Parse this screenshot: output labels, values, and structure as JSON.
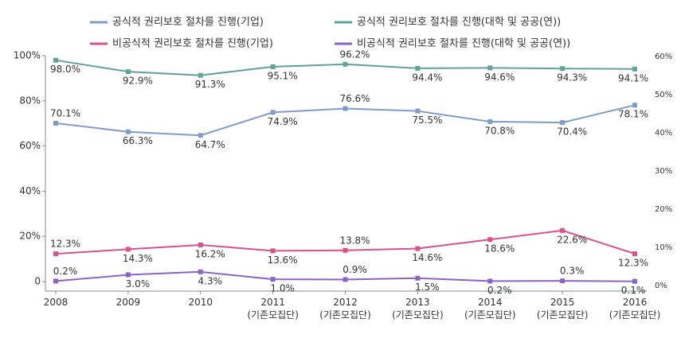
{
  "chart_data": {
    "type": "line",
    "categories": [
      "2008",
      "2009",
      "2010",
      "2011\n(기존모집단)",
      "2012\n(기존모집단)",
      "2013\n(기존모집단)",
      "2014\n(기존모집단)",
      "2015\n(기존모집단)",
      "2016\n(기존모집단)"
    ],
    "series": [
      {
        "name": "공식적 권리보호 절차를 진행(기업)",
        "color": "#7f9cc8",
        "values": [
          70.1,
          66.3,
          64.7,
          74.9,
          76.6,
          75.5,
          70.8,
          70.4,
          78.1
        ],
        "value_labels": [
          "70.1%",
          "66.3%",
          "64.7%",
          "74.9%",
          "76.6%",
          "75.5%",
          "70.8%",
          "70.4%",
          "78.1%"
        ]
      },
      {
        "name": "공식적 권리보호 절차를 진행(대학 및 공공(연))",
        "color": "#5ea39a",
        "values": [
          98.0,
          92.9,
          91.3,
          95.1,
          96.2,
          94.4,
          94.6,
          94.3,
          94.1
        ],
        "value_labels": [
          "98.0%",
          "92.9%",
          "91.3%",
          "95.1%",
          "96.2%",
          "94.4%",
          "94.6%",
          "94.3%",
          "94.1%"
        ]
      },
      {
        "name": "비공식적 권리보호 절차를 진행(기업)",
        "color": "#d9508a",
        "values": [
          12.3,
          14.3,
          16.2,
          13.6,
          13.8,
          14.6,
          18.6,
          22.6,
          12.3
        ],
        "value_labels": [
          "12.3%",
          "14.3%",
          "16.2%",
          "13.6%",
          "13.8%",
          "14.6%",
          "18.6%",
          "22.6%",
          "12.3%"
        ]
      },
      {
        "name": "비공식적 권리보호 절차를 진행(대학 및 공공(연))",
        "color": "#8a63c4",
        "values": [
          0.2,
          3.0,
          4.3,
          1.0,
          0.9,
          1.5,
          0.2,
          0.3,
          0.1
        ],
        "value_labels": [
          "0.2%",
          "3.0%",
          "4.3%",
          "1.0%",
          "0.9%",
          "1.5%",
          "0.2%",
          "0.3%",
          "0.1%"
        ]
      }
    ],
    "ylim": [
      0,
      100
    ],
    "yticks": [
      0,
      {
        "value": 20,
        "label": "20%"
      },
      {
        "value": 40,
        "label": "40%"
      },
      {
        "value": 60,
        "label": "60%"
      },
      {
        "value": 80,
        "label": "80%"
      },
      {
        "value": 100,
        "label": "100%"
      }
    ],
    "y2lim": [
      0,
      60
    ],
    "y2ticks": [
      {
        "value": 0,
        "label": "0%"
      },
      {
        "value": 10,
        "label": "10%"
      },
      {
        "value": 20,
        "label": "20%"
      },
      {
        "value": 30,
        "label": "30%"
      },
      {
        "value": 40,
        "label": "40%"
      },
      {
        "value": 50,
        "label": "50%"
      },
      {
        "value": 60,
        "label": "60%"
      }
    ],
    "grid": false,
    "legend": "top"
  }
}
